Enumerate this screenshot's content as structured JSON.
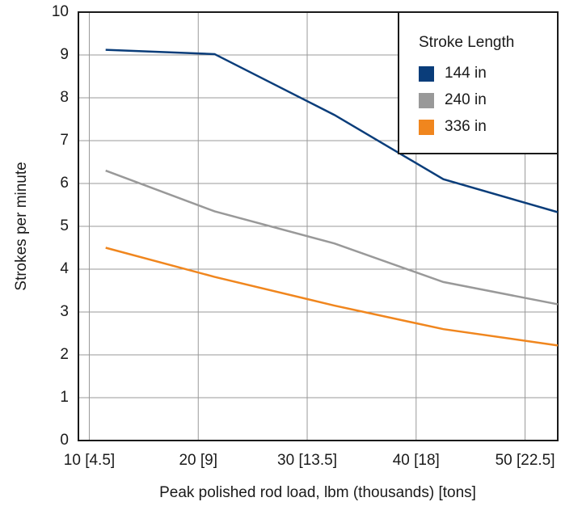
{
  "chart_data": {
    "type": "line",
    "x_label": "Peak polished rod load, lbm (thousands) [tons]",
    "y_label": "Strokes per minute",
    "legend_title": "Stroke Length",
    "legend": "upper right",
    "grid": true,
    "x": [
      11.5,
      21.5,
      32.5,
      42.5,
      53
    ],
    "series": [
      {
        "name": "144 in",
        "color": "#0a3d7a",
        "values": [
          9.12,
          9.02,
          7.6,
          6.1,
          5.33
        ]
      },
      {
        "name": "240 in",
        "color": "#999999",
        "values": [
          6.3,
          5.35,
          4.6,
          3.7,
          3.18
        ]
      },
      {
        "name": "336 in",
        "color": "#f0861e",
        "values": [
          4.5,
          3.82,
          3.15,
          2.6,
          2.22
        ]
      }
    ],
    "xlim": [
      9,
      53
    ],
    "xticks": [
      {
        "value": 10,
        "label": "10 [4.5]"
      },
      {
        "value": 20,
        "label": "20 [9]"
      },
      {
        "value": 30,
        "label": "30 [13.5]"
      },
      {
        "value": 40,
        "label": "40 [18]"
      },
      {
        "value": 50,
        "label": "50 [22.5]"
      }
    ],
    "ylim": [
      0,
      10
    ],
    "yticks": [
      0,
      1,
      2,
      3,
      4,
      5,
      6,
      7,
      8,
      9,
      10
    ]
  }
}
